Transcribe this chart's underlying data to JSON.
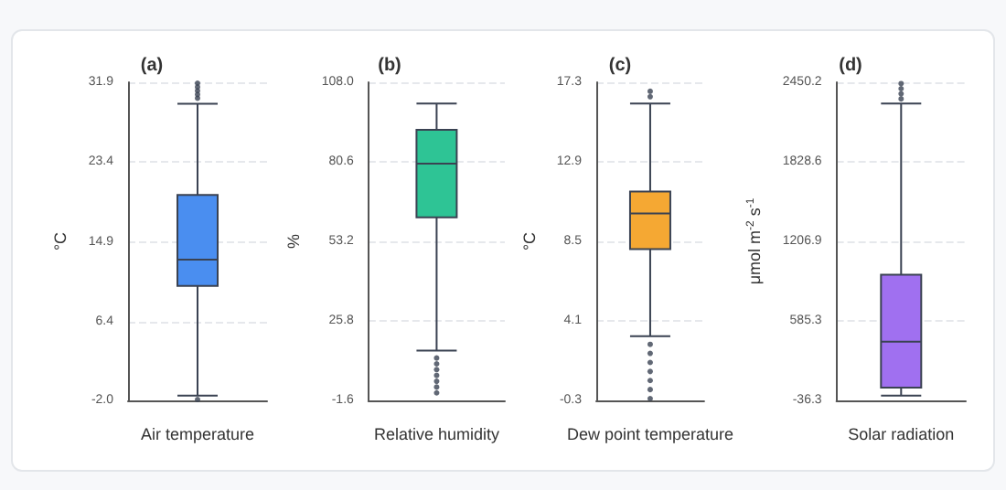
{
  "chart_data": [
    {
      "type": "box",
      "title": "(a)",
      "ylabel": "°C",
      "categories": [
        "Air temperature"
      ],
      "color": "#4a8ef0",
      "boxes": [
        {
          "low": -1.5,
          "q1": 10.2,
          "median": 13.0,
          "q3": 19.9,
          "high": 29.6,
          "outliers": [
            -1.9,
            30.2,
            30.6,
            31.0,
            31.4,
            31.8
          ]
        }
      ],
      "ylim": [
        -2.0,
        31.9
      ],
      "yticks": [
        {
          "value": -2.0,
          "label": "-2.0"
        },
        6.4,
        14.9,
        23.4,
        31.9
      ],
      "grid": "y"
    },
    {
      "type": "box",
      "title": "(b)",
      "ylabel": "%",
      "categories": [
        "Relative humidity"
      ],
      "color": "#2ec495",
      "boxes": [
        {
          "low": 15.6,
          "q1": 61.5,
          "median": 80.0,
          "q3": 91.6,
          "high": 100.7,
          "outliers": [
            13,
            11,
            9,
            7,
            5,
            3,
            1
          ]
        }
      ],
      "ylim": [
        -1.6,
        108.0
      ],
      "yticks": [
        -1.6,
        25.8,
        53.2,
        80.6,
        {
          "value": 108.0,
          "label": "108.0"
        }
      ],
      "grid": "y"
    },
    {
      "type": "box",
      "title": "(c)",
      "ylabel": "°C",
      "categories": [
        "Dew point temperature"
      ],
      "color": "#f5a833",
      "boxes": [
        {
          "low": 3.25,
          "q1": 8.07,
          "median": 10.04,
          "q3": 11.26,
          "high": 16.12,
          "outliers": [
            16.5,
            16.8,
            2.8,
            2.3,
            1.8,
            1.3,
            0.8,
            0.3,
            -0.2
          ]
        }
      ],
      "ylim": [
        -0.3,
        17.3
      ],
      "yticks": [
        -0.3,
        4.1,
        8.5,
        12.9,
        17.3
      ],
      "grid": "y"
    },
    {
      "type": "box",
      "title": "(d)",
      "ylabel": "μmol m$^{-2}$ s$^{-1}$",
      "categories": [
        "Solar radiation"
      ],
      "color": "#a070f0",
      "boxes": [
        {
          "low": 1,
          "q1": 64,
          "median": 422,
          "q3": 946,
          "high": 2284,
          "outliers": [
            2320,
            2360,
            2400,
            2440
          ]
        }
      ],
      "ylim": [
        -36.3,
        2450.2
      ],
      "yticks": [
        -36.3,
        585.3,
        1206.9,
        1828.6,
        2450.2
      ],
      "grid": "y"
    }
  ]
}
